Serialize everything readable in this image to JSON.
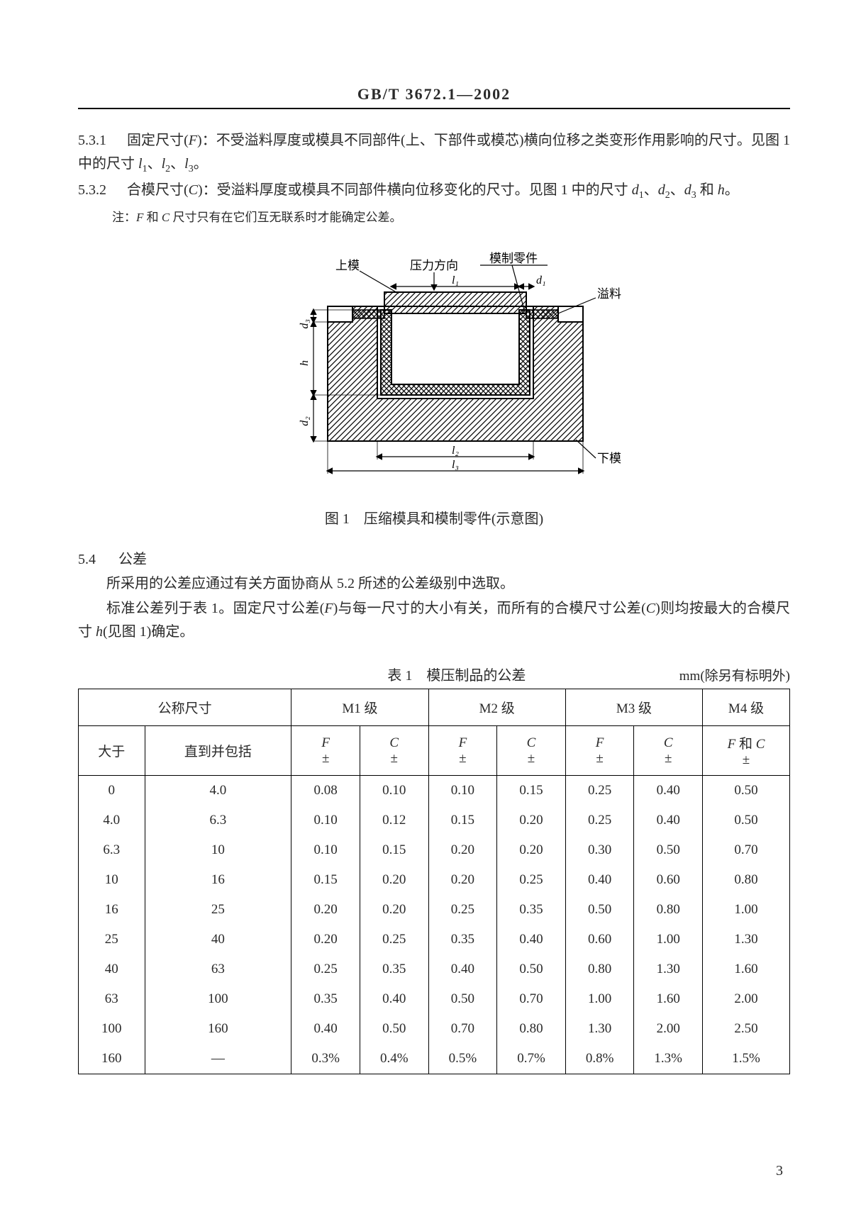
{
  "header": {
    "standard": "GB/T 3672.1—2002"
  },
  "clauses": {
    "c531_num": "5.3.1",
    "c531_text": "固定尺寸(F)：不受溢料厚度或模具不同部件(上、下部件或模芯)横向位移之类变形作用影响的尺寸。见图 1 中的尺寸 l₁、l₂、l₃。",
    "c532_num": "5.3.2",
    "c532_text": "合模尺寸(C)：受溢料厚度或模具不同部件横向位移变化的尺寸。见图 1 中的尺寸 d₁、d₂、d₃ 和 h。",
    "note": "注：F 和 C 尺寸只有在它们互无联系时才能确定公差。"
  },
  "figure": {
    "labels": {
      "upper_die": "上模",
      "press_dir": "压力方向",
      "molded_part": "模制零件",
      "flash": "溢料",
      "lower_die": "下模",
      "l1": "l₁",
      "l2": "l₂",
      "l3": "l₃",
      "d1": "d₁",
      "d2": "d₂",
      "d3": "d₃",
      "h": "h"
    },
    "caption": "图 1　压缩模具和模制零件(示意图)",
    "colors": {
      "stroke": "#000000",
      "hatch": "#000000",
      "part_fill": "#000000",
      "bg": "#ffffff"
    }
  },
  "sec54": {
    "num": "5.4",
    "title": "公差",
    "p1": "所采用的公差应通过有关方面协商从 5.2 所述的公差级别中选取。",
    "p2": "标准公差列于表 1。固定尺寸公差(F)与每一尺寸的大小有关，而所有的合模尺寸公差(C)则均按最大的合模尺寸 h(见图 1)确定。"
  },
  "table": {
    "title": "表 1　模压制品的公差",
    "unit": "mm(除另有标明外)",
    "cols": {
      "nominal": "公称尺寸",
      "gt": "大于",
      "upto": "直到并包括",
      "m1": "M1 级",
      "m2": "M2 级",
      "m3": "M3 级",
      "m4": "M4 级",
      "F": "F",
      "C": "C",
      "pm": "±",
      "FandC": "F 和 C"
    },
    "rows": [
      {
        "gt": "0",
        "upto": "4.0",
        "m1f": "0.08",
        "m1c": "0.10",
        "m2f": "0.10",
        "m2c": "0.15",
        "m3f": "0.25",
        "m3c": "0.40",
        "m4": "0.50"
      },
      {
        "gt": "4.0",
        "upto": "6.3",
        "m1f": "0.10",
        "m1c": "0.12",
        "m2f": "0.15",
        "m2c": "0.20",
        "m3f": "0.25",
        "m3c": "0.40",
        "m4": "0.50"
      },
      {
        "gt": "6.3",
        "upto": "10",
        "m1f": "0.10",
        "m1c": "0.15",
        "m2f": "0.20",
        "m2c": "0.20",
        "m3f": "0.30",
        "m3c": "0.50",
        "m4": "0.70"
      },
      {
        "gt": "10",
        "upto": "16",
        "m1f": "0.15",
        "m1c": "0.20",
        "m2f": "0.20",
        "m2c": "0.25",
        "m3f": "0.40",
        "m3c": "0.60",
        "m4": "0.80"
      },
      {
        "gt": "16",
        "upto": "25",
        "m1f": "0.20",
        "m1c": "0.20",
        "m2f": "0.25",
        "m2c": "0.35",
        "m3f": "0.50",
        "m3c": "0.80",
        "m4": "1.00"
      },
      {
        "gt": "25",
        "upto": "40",
        "m1f": "0.20",
        "m1c": "0.25",
        "m2f": "0.35",
        "m2c": "0.40",
        "m3f": "0.60",
        "m3c": "1.00",
        "m4": "1.30"
      },
      {
        "gt": "40",
        "upto": "63",
        "m1f": "0.25",
        "m1c": "0.35",
        "m2f": "0.40",
        "m2c": "0.50",
        "m3f": "0.80",
        "m3c": "1.30",
        "m4": "1.60"
      },
      {
        "gt": "63",
        "upto": "100",
        "m1f": "0.35",
        "m1c": "0.40",
        "m2f": "0.50",
        "m2c": "0.70",
        "m3f": "1.00",
        "m3c": "1.60",
        "m4": "2.00"
      },
      {
        "gt": "100",
        "upto": "160",
        "m1f": "0.40",
        "m1c": "0.50",
        "m2f": "0.70",
        "m2c": "0.80",
        "m3f": "1.30",
        "m3c": "2.00",
        "m4": "2.50"
      },
      {
        "gt": "160",
        "upto": "—",
        "m1f": "0.3%",
        "m1c": "0.4%",
        "m2f": "0.5%",
        "m2c": "0.7%",
        "m3f": "0.8%",
        "m3c": "1.3%",
        "m4": "1.5%"
      }
    ]
  },
  "page_number": "3"
}
